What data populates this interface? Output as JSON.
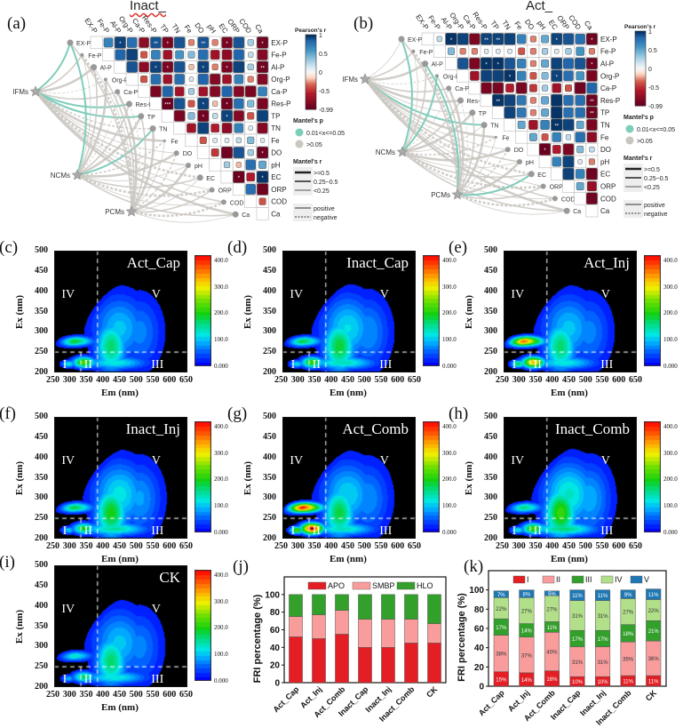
{
  "correlation_panels": [
    {
      "label": "(a)",
      "title": "Inact_",
      "vars": [
        "EX-P",
        "Fe-P",
        "Al-P",
        "Org-P",
        "Ca-P",
        "Res-P",
        "TP",
        "TN",
        "Fe",
        "DO",
        "pH",
        "EC",
        "ORP",
        "COD",
        "Ca"
      ],
      "groups": [
        "IFMs",
        "NCMs",
        "PCMs"
      ],
      "r": [
        [
          0.7,
          0.95,
          0.8,
          -0.8,
          0.9,
          -0.9,
          0.9,
          -0.3,
          0.9,
          -0.3,
          -0.9,
          0.9,
          0.3,
          -0.95
        ],
        [
          0.85,
          0.95,
          -0.4,
          0.7,
          -0.7,
          0.6,
          0.4,
          0.8,
          -0.7,
          -0.8,
          0.85,
          0.2,
          -0.85
        ],
        [
          0.9,
          -0.8,
          0.95,
          -0.9,
          0.9,
          -0.2,
          0.95,
          -0.3,
          -0.9,
          0.95,
          0.3,
          -0.95
        ],
        [
          -0.4,
          0.8,
          -0.7,
          0.8,
          0.1,
          0.85,
          -0.85,
          -0.7,
          0.7,
          -0.3,
          -0.85
        ],
        [
          -0.9,
          0.85,
          -0.7,
          0.3,
          -0.7,
          -0.85,
          0.85,
          -0.85,
          -0.9,
          0.7
        ],
        [
          -0.99,
          0.9,
          -0.4,
          0.95,
          -0.2,
          -0.95,
          0.8,
          0.4,
          -0.9
        ],
        [
          -0.9,
          0.4,
          -0.95,
          0.2,
          0.95,
          -0.85,
          -0.4,
          0.95
        ],
        [
          -0.7,
          0.95,
          -0.6,
          -0.8,
          0.7,
          0.1,
          -0.85
        ],
        [
          -0.4,
          0.1,
          0.1,
          0.2,
          0.4,
          0.1
        ],
        [
          -0.5,
          -0.95,
          0.9,
          0.3,
          -0.95
        ],
        [
          0.3,
          -0.2,
          0.8,
          0.5
        ],
        [
          -0.99,
          -0.6,
          0.99
        ],
        [
          0.8,
          -0.95
        ],
        [
          -0.4
        ]
      ],
      "sig": [
        "EX-P|Al-P|*",
        "EX-P|Res-P|**",
        "EX-P|TP|*",
        "EX-P|DO|**",
        "EX-P|EC|*",
        "EX-P|Ca|*",
        "Al-P|Res-P|*",
        "Al-P|TP|*",
        "Al-P|DO|*",
        "Al-P|EC|*",
        "Al-P|Ca|**",
        "Res-P|TP|***",
        "Res-P|DO|*",
        "Res-P|EC|*",
        "TP|DO|*",
        "TP|EC|*",
        "DO|Ca|*",
        "EC|ORP|*",
        "EC|Ca|*"
      ],
      "mantel_sig": [
        [
          "IFMs",
          "EX-P"
        ],
        [
          "IFMs",
          "Res-P"
        ],
        [
          "IFMs",
          "TP"
        ],
        [
          "NCMs",
          "TN"
        ],
        [
          "NCMs",
          "EX-P"
        ]
      ]
    },
    {
      "label": "(b)",
      "title": "Act_",
      "vars": [
        "EX-P",
        "Fe-P",
        "Al-P",
        "Org-P",
        "Ca-P",
        "Res-P",
        "TP",
        "TN",
        "Fe",
        "DO",
        "pH",
        "EC",
        "ORP",
        "COD",
        "Ca"
      ],
      "groups": [
        "IFMs",
        "NCMs",
        "PCMs"
      ],
      "r": [
        [
          0.2,
          0.99,
          0.95,
          -0.9,
          0.95,
          0.95,
          0.95,
          0.7,
          -0.3,
          0.5,
          0.95,
          0.9,
          0.8,
          -0.95
        ],
        [
          0.4,
          -0.3,
          -0.3,
          0.1,
          0.1,
          0.1,
          -0.4,
          -0.3,
          0.3,
          0.1,
          0.3,
          0.6,
          -0.3
        ],
        [
          0.9,
          -0.9,
          0.99,
          0.99,
          0.9,
          0.7,
          -0.3,
          0.5,
          0.95,
          0.85,
          0.9,
          -0.95
        ],
        [
          -0.7,
          0.95,
          0.95,
          0.99,
          0.7,
          -0.4,
          0.4,
          0.95,
          0.8,
          0.6,
          -0.9
        ],
        [
          -0.9,
          -0.9,
          -0.6,
          -0.9,
          -0.5,
          0.3,
          -0.7,
          -0.4,
          -0.95,
          0.85
        ],
        [
          0.99,
          0.95,
          0.75,
          -0.3,
          0.5,
          0.99,
          0.8,
          0.8,
          -0.95
        ],
        [
          0.95,
          0.75,
          -0.3,
          0.5,
          0.99,
          0.8,
          0.8,
          -0.95
        ],
        [
          0.5,
          -0.7,
          0.7,
          0.99,
          0.95,
          0.5,
          -0.9
        ],
        [
          0.5,
          -0.4,
          0.7,
          0.2,
          0.8,
          -0.8
        ],
        [
          -0.99,
          -0.6,
          -0.9,
          0.4,
          0.2
        ],
        [
          0.7,
          0.95,
          0.1,
          -0.3
        ],
        [
          0.95,
          0.7,
          -0.95
        ],
        [
          0.5,
          -0.75
        ],
        [
          -0.95
        ]
      ],
      "sig": [
        "EX-P|Al-P|*",
        "EX-P|Res-P|**",
        "EX-P|TP|**",
        "EX-P|EC|*",
        "EX-P|Ca|*",
        "Al-P|Res-P|*",
        "Al-P|TP|*",
        "Al-P|Ca|*",
        "Org-P|TN|*",
        "Org-P|EC|*",
        "Res-P|TP|**",
        "Res-P|Ca|**",
        "TP|Ca|**",
        "TN|EC|**",
        "DO|pH|*"
      ],
      "mantel_sig": [
        [
          "NCMs",
          "EX-P"
        ],
        [
          "NCMs",
          "Org-P"
        ],
        [
          "IFMs",
          "TN"
        ],
        [
          "PCMs",
          "EC"
        ],
        [
          "PCMs",
          "Al-P"
        ]
      ]
    }
  ],
  "legend": {
    "pearson_title": "Pearson's r",
    "pearson_ticks": [
      "1",
      "0.5",
      "0",
      "-0.5",
      "-0.99"
    ],
    "mantel_p_title": "Mantel's p",
    "p_items": [
      "0.01<x<=0.05",
      ">0.05"
    ],
    "mantel_r_title": "Mantel's r",
    "r_items": [
      ">=0.5",
      "0.25~0.5",
      "<0.25"
    ],
    "line_items": [
      "positive",
      "negative"
    ]
  },
  "colors": {
    "mantel_sig": "#7fcdbb",
    "mantel_ns": "#c9c6c0",
    "corr_neg": "#67001f",
    "corr_pos": "#053061"
  },
  "eem": {
    "xlabel": "Em (nm)",
    "ylabel": "Ex (nm)",
    "xticks": [
      "250",
      "300",
      "350",
      "400",
      "450",
      "500",
      "550",
      "600",
      "650"
    ],
    "yticks": [
      "500",
      "450",
      "400",
      "350",
      "300",
      "250",
      "200"
    ],
    "regions": [
      "I",
      "II",
      "III",
      "IV",
      "V"
    ],
    "colorbar_ticks": [
      "400.0",
      "300.0",
      "200.0",
      "100.0",
      "0.000"
    ],
    "colorbar_max": 420,
    "panels": [
      {
        "label": "(c)",
        "name": "Act_Cap",
        "peak_IV": 200,
        "peak_II": 235,
        "humic": 170
      },
      {
        "label": "(d)",
        "name": "Inact_Cap",
        "peak_IV": 190,
        "peak_II": 220,
        "humic": 190
      },
      {
        "label": "(e)",
        "name": "Act_Inj",
        "peak_IV": 380,
        "peak_II": 330,
        "humic": 170
      },
      {
        "label": "(f)",
        "name": "Inact_Inj",
        "peak_IV": 190,
        "peak_II": 200,
        "humic": 200
      },
      {
        "label": "(g)",
        "name": "Act_Comb",
        "peak_IV": 420,
        "peak_II": 420,
        "humic": 185
      },
      {
        "label": "(h)",
        "name": "Inact_Comb",
        "peak_IV": 170,
        "peak_II": 230,
        "humic": 220
      },
      {
        "label": "(i)",
        "name": "CK",
        "peak_IV": 140,
        "peak_II": 170,
        "humic": 170
      }
    ]
  },
  "chart_data": [
    {
      "panel": "(j)",
      "type": "bar",
      "stacked": true,
      "categories": [
        "Act_Cap",
        "Act_Inj",
        "Act_Comb",
        "Inact_Cap",
        "Inact_Inj",
        "Inact_Comb",
        "CK"
      ],
      "series": [
        {
          "name": "APO",
          "color": "#e31e24",
          "values": [
            52,
            50,
            55,
            40,
            40,
            45,
            45
          ]
        },
        {
          "name": "SMBP",
          "color": "#f89c9c",
          "values": [
            23,
            27,
            27,
            32,
            32,
            27,
            22
          ]
        },
        {
          "name": "HLO",
          "color": "#33a02c",
          "values": [
            25,
            23,
            18,
            28,
            28,
            28,
            33
          ]
        }
      ],
      "ylabel": "FRI percentage (%)",
      "yticks": [
        0,
        20,
        40,
        60,
        80,
        100
      ],
      "ylim": [
        0,
        120
      ],
      "legend": "top"
    },
    {
      "panel": "(k)",
      "type": "bar",
      "stacked": true,
      "categories": [
        "Act_Cap",
        "Act_Inj",
        "Act_Comb",
        "Inact_Cap",
        "Inact_Inj",
        "Inact_Comb",
        "CK"
      ],
      "series": [
        {
          "name": "I",
          "color": "#e31e24",
          "values": [
            15,
            14,
            16,
            10,
            10,
            11,
            11
          ]
        },
        {
          "name": "II",
          "color": "#f89c9c",
          "values": [
            38,
            37,
            40,
            31,
            31,
            35,
            36
          ]
        },
        {
          "name": "III",
          "color": "#33a02c",
          "values": [
            17,
            14,
            11,
            17,
            17,
            18,
            21
          ]
        },
        {
          "name": "IV",
          "color": "#b2df8a",
          "values": [
            22,
            27,
            27,
            31,
            31,
            27,
            22
          ]
        },
        {
          "name": "V",
          "color": "#1f78b4",
          "values": [
            7,
            8,
            5,
            11,
            11,
            9,
            11
          ]
        }
      ],
      "data_labels": [
        [
          "15%",
          "38%",
          "17%",
          "22%",
          "7%"
        ],
        [
          "14%",
          "37%",
          "14%",
          "27%",
          "8%"
        ],
        [
          "16%",
          "40%",
          "11%",
          "27%",
          "5%"
        ],
        [
          "10%",
          "31%",
          "17%",
          "31%",
          "11%"
        ],
        [
          "10%",
          "31%",
          "17%",
          "31%",
          "11%"
        ],
        [
          "11%",
          "35%",
          "18%",
          "27%",
          "9%"
        ],
        [
          "11%",
          "36%",
          "21%",
          "22%",
          "11%"
        ]
      ],
      "ylabel": "FRI percentage (%)",
      "yticks": [
        0,
        20,
        40,
        60,
        80,
        100
      ],
      "ylim": [
        0,
        120
      ],
      "legend": "top"
    }
  ]
}
